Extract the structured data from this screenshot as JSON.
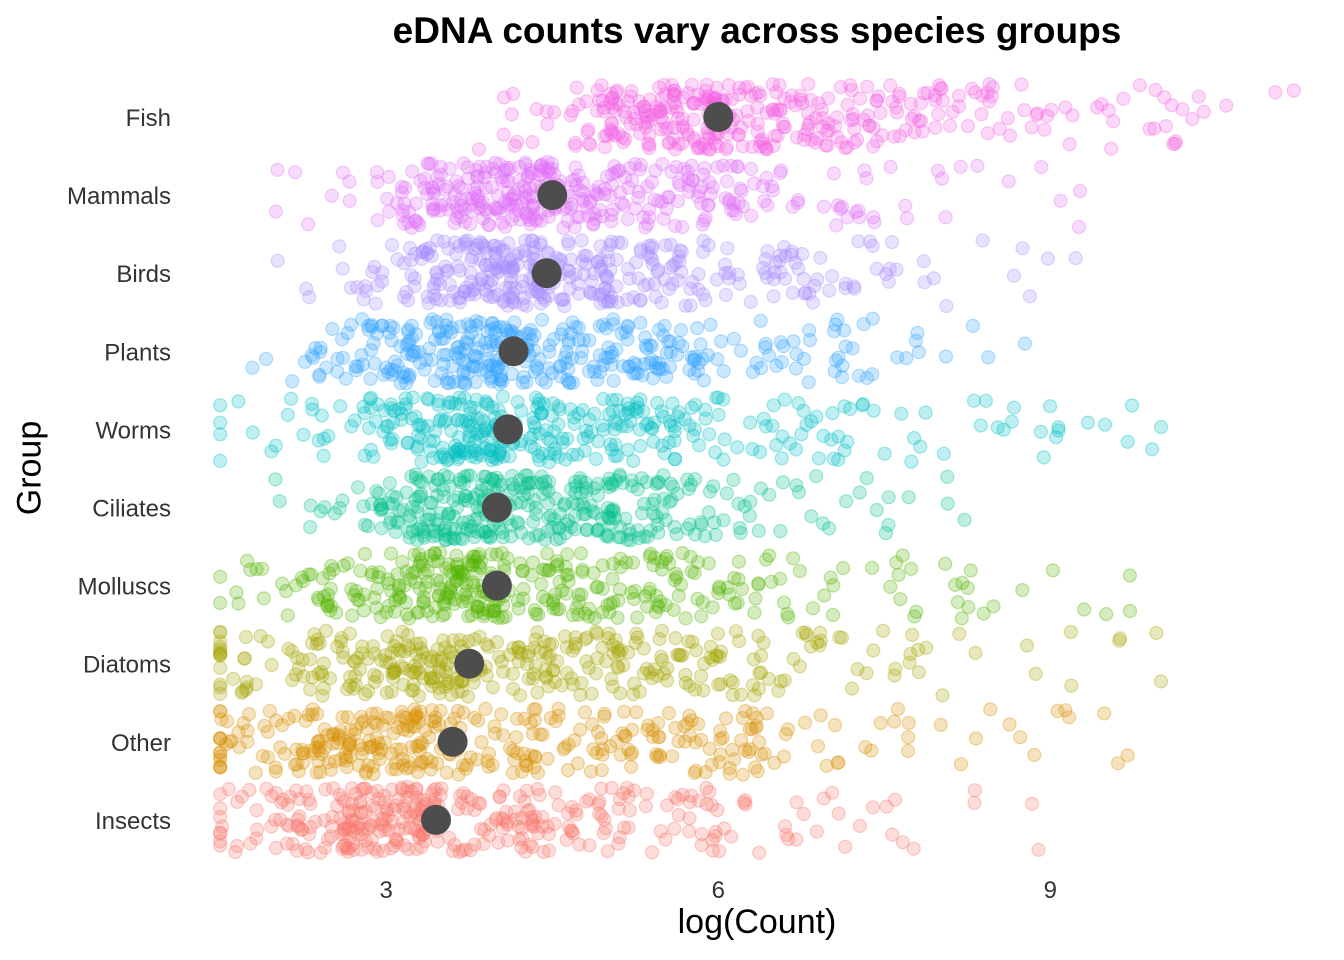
{
  "chart_data": {
    "type": "scatter",
    "title": "eDNA counts vary across species groups",
    "xlabel": "log(Count)",
    "ylabel": "Group",
    "xlim": [
      1.2,
      11.5
    ],
    "x_ticks": [
      "3",
      "6",
      "9"
    ],
    "x_tick_values": [
      3,
      6,
      9
    ],
    "grid": false,
    "legend": "none",
    "categories": [
      "Fish",
      "Mammals",
      "Birds",
      "Plants",
      "Worms",
      "Ciliates",
      "Molluscs",
      "Diatoms",
      "Other",
      "Insects"
    ],
    "series": [
      {
        "group": "Fish",
        "color": "#F564E3",
        "summary_x": 6.0,
        "range": [
          1.5,
          11.2
        ]
      },
      {
        "group": "Mammals",
        "color": "#DF70F8",
        "summary_x": 4.5,
        "range": [
          1.5,
          9.5
        ]
      },
      {
        "group": "Birds",
        "color": "#A58AFF",
        "summary_x": 4.45,
        "range": [
          1.5,
          9.3
        ]
      },
      {
        "group": "Plants",
        "color": "#35A2FF",
        "summary_x": 4.15,
        "range": [
          1.5,
          9.4
        ]
      },
      {
        "group": "Worms",
        "color": "#00BFC4",
        "summary_x": 4.1,
        "range": [
          1.5,
          10.0
        ]
      },
      {
        "group": "Ciliates",
        "color": "#00C08B",
        "summary_x": 4.0,
        "range": [
          1.5,
          8.3
        ]
      },
      {
        "group": "Molluscs",
        "color": "#53B400",
        "summary_x": 4.0,
        "range": [
          1.5,
          9.8
        ]
      },
      {
        "group": "Diatoms",
        "color": "#A3A500",
        "summary_x": 3.75,
        "range": [
          1.5,
          10.0
        ]
      },
      {
        "group": "Other",
        "color": "#D89000",
        "summary_x": 3.6,
        "range": [
          1.5,
          10.0
        ]
      },
      {
        "group": "Insects",
        "color": "#F8766D",
        "summary_x": 3.45,
        "range": [
          1.5,
          9.0
        ]
      }
    ],
    "summary_point_color": "#4D4D4D"
  }
}
